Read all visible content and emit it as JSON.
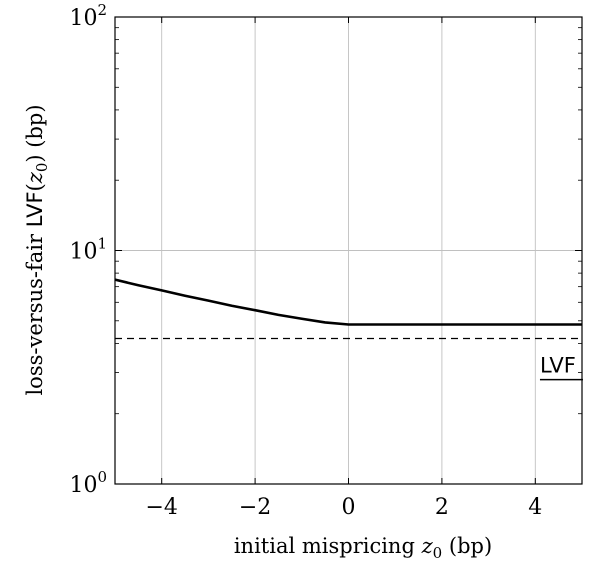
{
  "chart_data": {
    "type": "line",
    "yscale": "log",
    "xlim": [
      -5,
      5
    ],
    "ylim": [
      1,
      100
    ],
    "grid": true,
    "xlabel": {
      "prefix": "initial mispricing ",
      "var": "z",
      "sub": "0",
      "suffix": " (bp)"
    },
    "ylabel": {
      "prefix": "loss-versus-fair ",
      "func": "LVF",
      "open": "(",
      "var": "z",
      "sub": "0",
      "close": ")",
      "suffix": " (bp)"
    },
    "x_ticks": [
      -4,
      -2,
      0,
      2,
      4
    ],
    "x_tick_labels": [
      "−4",
      "−2",
      "0",
      "2",
      "4"
    ],
    "y_ticks": [
      {
        "value": 1,
        "base": "10",
        "exp": "0"
      },
      {
        "value": 10,
        "base": "10",
        "exp": "1"
      },
      {
        "value": 100,
        "base": "10",
        "exp": "2"
      }
    ],
    "series": [
      {
        "style": "solid",
        "x": [
          -5,
          -4.5,
          -4,
          -3.5,
          -3,
          -2.5,
          -2,
          -1.5,
          -1,
          -0.5,
          0,
          1,
          2,
          3,
          4,
          5
        ],
        "y": [
          7.5,
          7.1,
          6.75,
          6.4,
          6.1,
          5.8,
          5.55,
          5.3,
          5.1,
          4.92,
          4.82,
          4.82,
          4.82,
          4.82,
          4.82,
          4.82
        ]
      },
      {
        "name": "LVF",
        "style": "dashed",
        "x": [
          -5,
          5
        ],
        "y": [
          4.2,
          4.2
        ]
      }
    ],
    "annotations": [
      {
        "text": "LVF",
        "x": 4.1,
        "y": 3.0,
        "underline": true
      }
    ]
  }
}
